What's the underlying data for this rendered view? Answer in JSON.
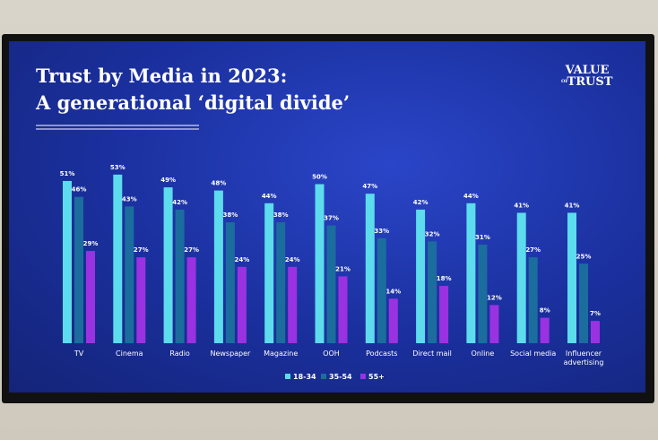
{
  "chart_data": {
    "type": "bar",
    "title": "Trust by Media in 2023:",
    "subtitle": "A generational ‘digital divide’",
    "logo": {
      "top": "VALUE",
      "middle": "OF",
      "bottom": "TRUST"
    },
    "categories": [
      "TV",
      "Cinema",
      "Radio",
      "Newspaper",
      "Magazine",
      "OOH",
      "Podcasts",
      "Direct mail",
      "Online",
      "Social media",
      "Influencer advertising"
    ],
    "series": [
      {
        "name": "18-34",
        "color": "#5cdcec",
        "values": [
          51,
          53,
          49,
          48,
          44,
          50,
          47,
          42,
          44,
          41,
          41
        ],
        "value_labels": [
          "51%",
          "53%",
          "49%",
          "48%",
          "44%",
          "50%",
          "47%",
          "42%",
          "44%",
          "41%",
          "41%"
        ]
      },
      {
        "name": "35-54",
        "color": "#1b6d9e",
        "values": [
          46,
          43,
          42,
          38,
          38,
          37,
          33,
          32,
          31,
          27,
          25
        ],
        "value_labels": [
          "46%",
          "43%",
          "42%",
          "38%",
          "38%",
          "37%",
          "33%",
          "32%",
          "31%",
          "27%",
          "25%"
        ]
      },
      {
        "name": "55+",
        "color": "#9a32e2",
        "values": [
          29,
          27,
          27,
          24,
          24,
          21,
          14,
          18,
          12,
          8,
          7
        ],
        "value_labels": [
          "29%",
          "27%",
          "27%",
          "24%",
          "24%",
          "21%",
          "14%",
          "18%",
          "12%",
          "8%",
          "7%"
        ]
      }
    ],
    "legend": "bottom"
  }
}
